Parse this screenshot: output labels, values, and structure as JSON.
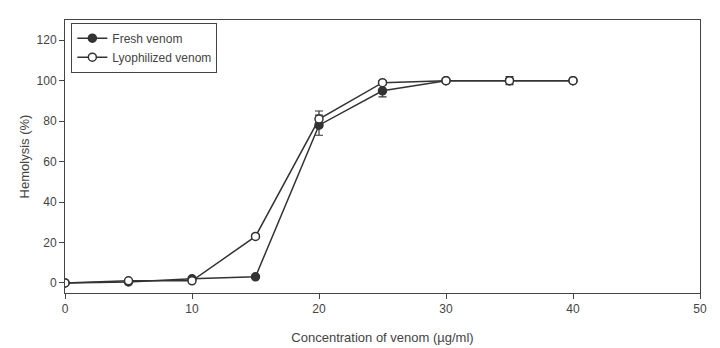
{
  "chart_data": {
    "type": "line",
    "xlabel": "Concentration of venom (µg/ml)",
    "ylabel": "Hemolysis (%)",
    "x": [
      0,
      5,
      10,
      15,
      20,
      25,
      30,
      35,
      40
    ],
    "series": [
      {
        "name": "Fresh venom",
        "color": "#333333",
        "marker": "circle",
        "line_style": "solid",
        "values": [
          0,
          0.5,
          2,
          3,
          78,
          95,
          100,
          100,
          100
        ],
        "errors": [
          0,
          0.2,
          0.5,
          0.5,
          5,
          3,
          1,
          1,
          0.5
        ]
      },
      {
        "name": "Lyophilized venom",
        "color": "#333333",
        "marker": "open circle",
        "line_style": "solid",
        "values": [
          0,
          1,
          1,
          23,
          81,
          99,
          100,
          100,
          100
        ],
        "errors": [
          0,
          0.5,
          0.5,
          1.0,
          4,
          1,
          1,
          2,
          0.5
        ]
      }
    ],
    "xlim": [
      0,
      50
    ],
    "ylim": [
      -5,
      130
    ],
    "xticks": [
      0,
      10,
      20,
      30,
      40,
      50
    ],
    "yticks": [
      0,
      20,
      40,
      60,
      80,
      100,
      120
    ],
    "legend": "upper left",
    "grid": false
  }
}
